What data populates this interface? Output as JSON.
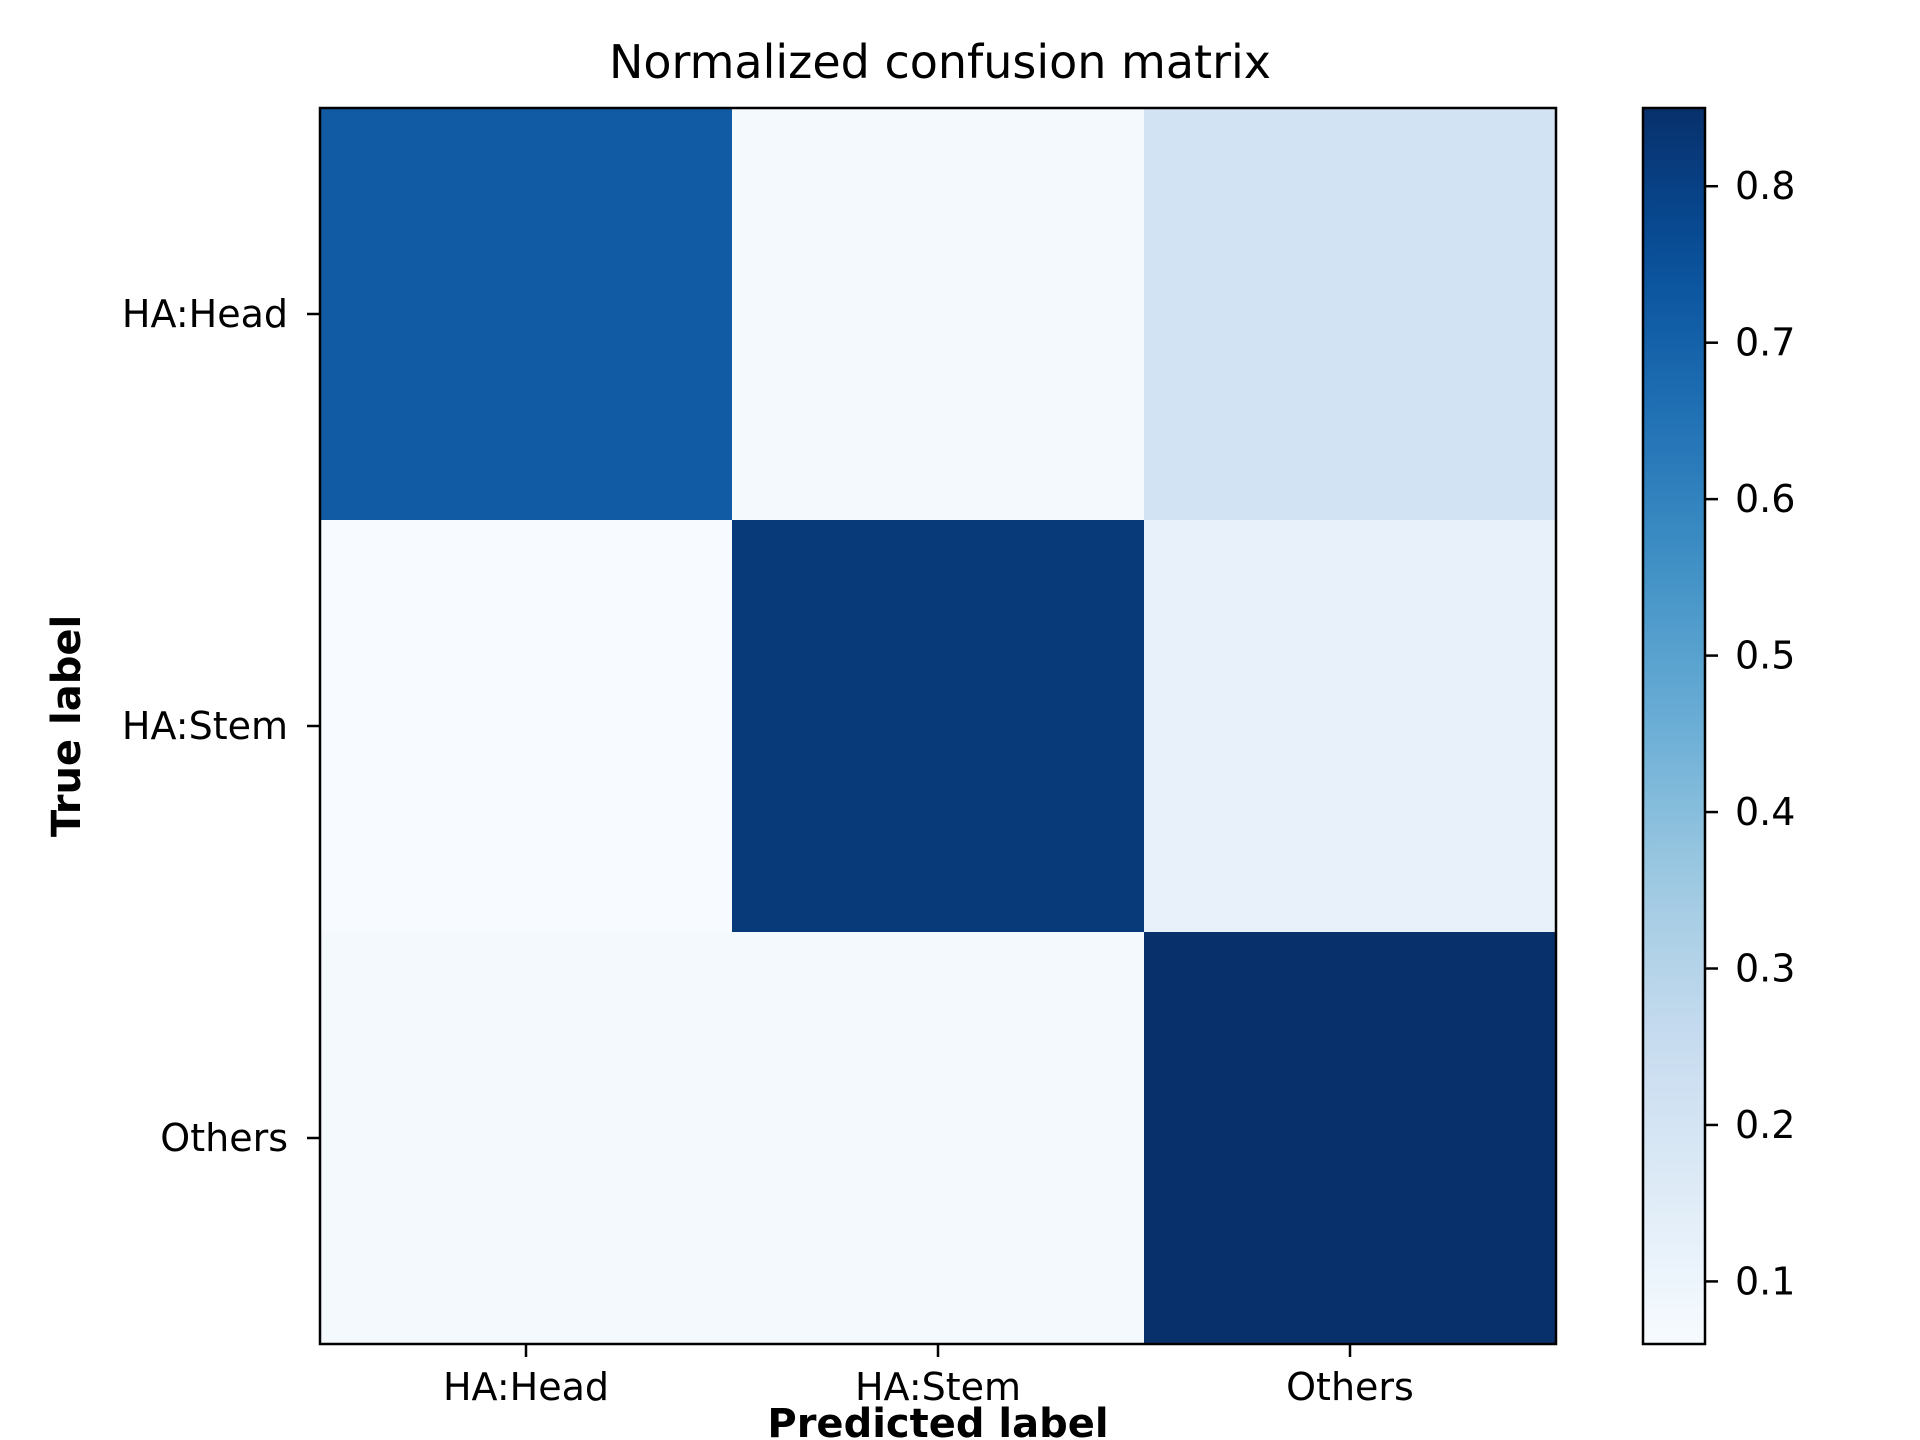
{
  "chart_data": {
    "type": "heatmap",
    "title": "Normalized confusion matrix",
    "xlabel": "Predicted label",
    "ylabel": "True label",
    "x_categories": [
      "HA:Head",
      "HA:Stem",
      "Others"
    ],
    "y_categories": [
      "HA:Head",
      "HA:Stem",
      "Others"
    ],
    "values": [
      [
        0.72,
        0.07,
        0.21
      ],
      [
        0.06,
        0.82,
        0.12
      ],
      [
        0.07,
        0.07,
        0.85
      ]
    ],
    "colormap": "Blues",
    "colorbar": {
      "min": 0.06,
      "max": 0.85,
      "ticks": [
        0.1,
        0.2,
        0.3,
        0.4,
        0.5,
        0.6,
        0.7,
        0.8
      ],
      "tick_labels": [
        "0.1",
        "0.2",
        "0.3",
        "0.4",
        "0.5",
        "0.6",
        "0.7",
        "0.8"
      ]
    },
    "grid": false
  }
}
